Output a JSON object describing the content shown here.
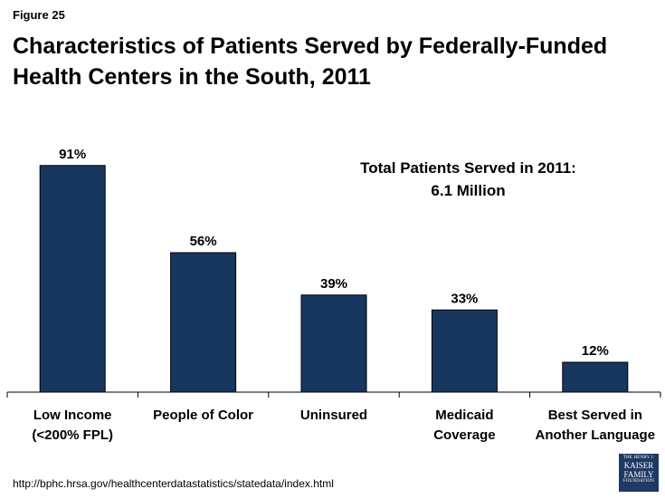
{
  "figure_label": "Figure 25",
  "title_line1": "Characteristics of Patients Served by Federally-Funded",
  "title_line2": "Health Centers in the South, 2011",
  "annotation_line1": "Total Patients Served in 2011:",
  "annotation_line2": "6.1 Million",
  "source": "http://bphc.hrsa.gov/healthcenterdatastatistics/statedata/index.html",
  "logo": {
    "top": "THE HENRY J.",
    "line1": "KAISER",
    "line2": "FAMILY",
    "bottom": "FOUNDATION"
  },
  "colors": {
    "bar": "#17375e",
    "axis": "#000000"
  },
  "chart_data": {
    "type": "bar",
    "categories": [
      [
        "Low Income",
        "(<200% FPL)"
      ],
      [
        "People of Color"
      ],
      [
        "Uninsured"
      ],
      [
        "Medicaid",
        "Coverage"
      ],
      [
        "Best Served in",
        "Another Language"
      ]
    ],
    "values": [
      91,
      56,
      39,
      33,
      12
    ],
    "data_labels": [
      "91%",
      "56%",
      "39%",
      "33%",
      "12%"
    ],
    "ylim": [
      0,
      100
    ],
    "grid": false,
    "legend": "none"
  }
}
